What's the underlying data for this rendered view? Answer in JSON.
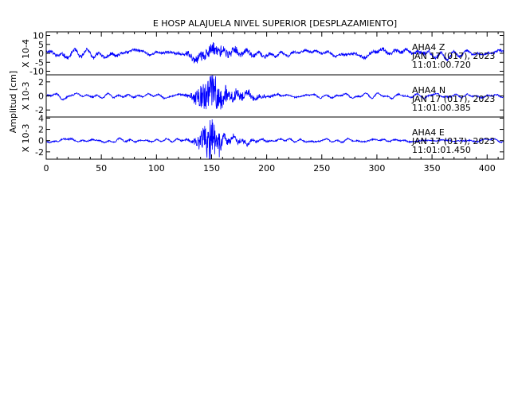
{
  "chart_data": {
    "type": "line",
    "title": "E HOSP ALAJUELA NIVEL SUPERIOR [DESPLAZAMIENTO]",
    "ylabel": "Amplitud [cm]",
    "xlabel": "",
    "xlim": [
      0,
      415
    ],
    "x_ticks": [
      0,
      50,
      100,
      150,
      200,
      250,
      300,
      350,
      400
    ],
    "grid": false,
    "line_color": "#0000ff",
    "axis_color": "#000000",
    "panels": [
      {
        "scale_label": "X 10-4",
        "ylim": [
          -12,
          12
        ],
        "y_ticks": [
          10,
          5,
          0,
          -5,
          -10
        ],
        "y_tick_labels": [
          "10",
          "5",
          "0",
          "-5",
          "-10"
        ],
        "station_label": "AHA4   Z",
        "date_label": "JAN 17 (017), 2023",
        "time_label": "11:01:00.720",
        "series": {
          "kind": "broadband",
          "noise_amplitude": 3.5,
          "burst_amplitude": 4.5,
          "burst_center": 152,
          "burst_width": 18,
          "seed": 11
        }
      },
      {
        "scale_label": "X 10-3",
        "ylim": [
          -3,
          3
        ],
        "y_ticks": [
          2,
          0,
          -2
        ],
        "y_tick_labels": [
          "2",
          "0",
          "-2"
        ],
        "station_label": "AHA4   N",
        "date_label": "JAN 17 (017), 2023",
        "time_label": "11:01:00.385",
        "series": {
          "kind": "event",
          "noise_amplitude": 0.35,
          "burst_amplitude": 2.6,
          "burst_center": 150,
          "burst_width": 10,
          "coda_amplitude": 1.1,
          "coda_center": 168,
          "coda_width": 20,
          "seed": 23
        }
      },
      {
        "scale_label": "X 10-3",
        "ylim": [
          -3.3,
          4.2
        ],
        "y_ticks": [
          4,
          2,
          0,
          -2
        ],
        "y_tick_labels": [
          "4",
          "2",
          "0",
          "-2"
        ],
        "station_label": "AHA4   E",
        "date_label": "JAN 17 (017), 2023",
        "time_label": "11:01:01.450",
        "series": {
          "kind": "event",
          "noise_amplitude": 0.4,
          "burst_amplitude": 3.6,
          "burst_center": 149,
          "burst_width": 7,
          "coda_amplitude": 1.2,
          "coda_center": 162,
          "coda_width": 18,
          "seed": 37
        }
      }
    ]
  }
}
